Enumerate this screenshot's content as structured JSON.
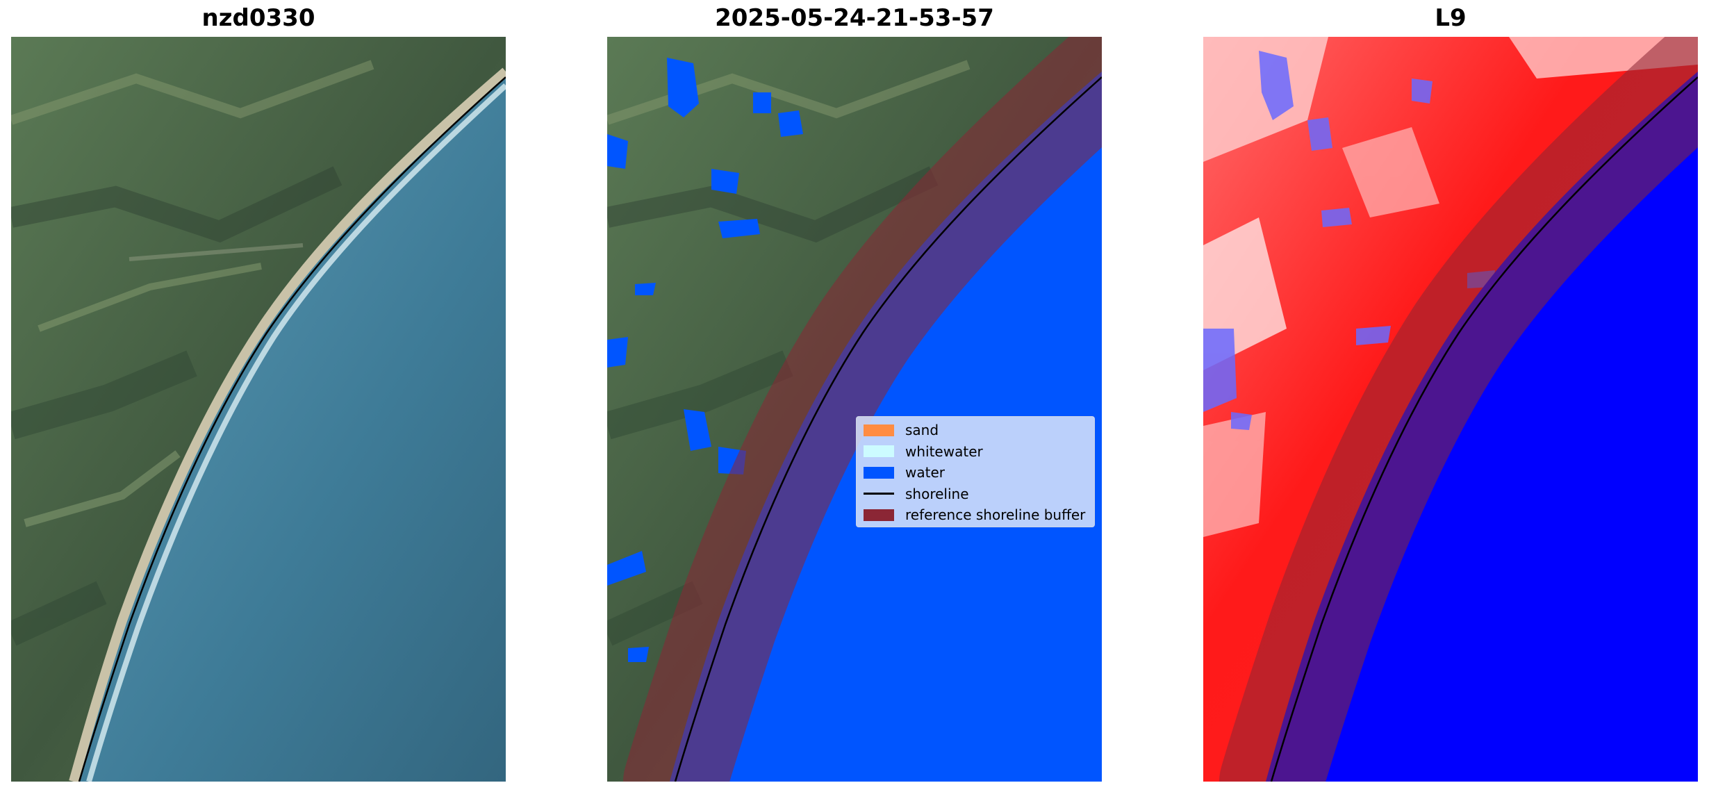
{
  "panels": [
    {
      "title": "nzd0330",
      "image_description_icon": "satellite-rgb-image"
    },
    {
      "title": "2025-05-24-21-53-57",
      "image_description_icon": "classified-image"
    },
    {
      "title": "L9",
      "image_description_icon": "index-image"
    }
  ],
  "legend": {
    "items": [
      {
        "label": "sand",
        "color": "#ff8c42",
        "kind": "patch"
      },
      {
        "label": "whitewater",
        "color": "#ccfbff",
        "kind": "patch"
      },
      {
        "label": "water",
        "color": "#0055ff",
        "kind": "patch"
      },
      {
        "label": "shoreline",
        "color": "#000000",
        "kind": "line"
      },
      {
        "label": "reference shoreline buffer",
        "color": "#8b2635",
        "kind": "patch"
      }
    ]
  },
  "colors": {
    "land": "#4e6a52",
    "ocean_rgb": "#3f7f98",
    "water_class": "#0055ff",
    "buffer": "#8b2635",
    "index_high": "#ff0000",
    "index_low": "#0000ff"
  }
}
